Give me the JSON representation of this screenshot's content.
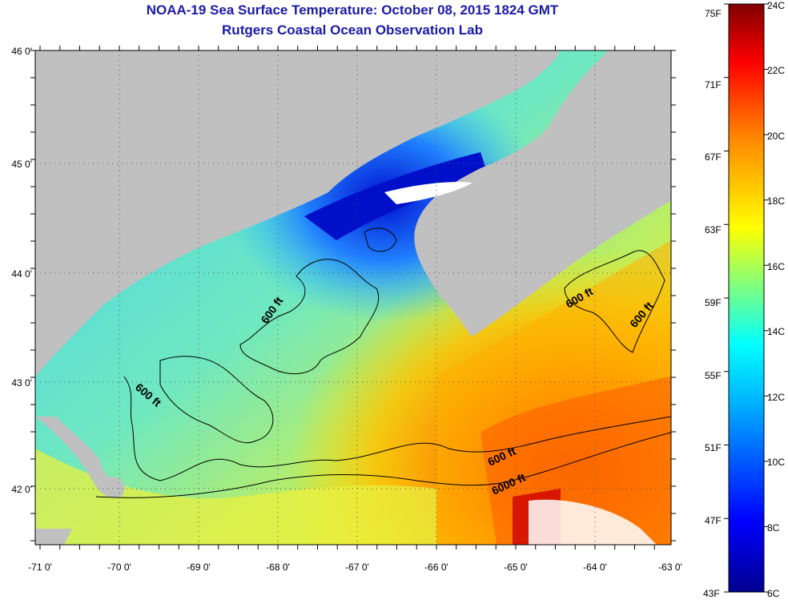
{
  "title": "NOAA-19 Sea Surface Temperature:  October 08, 2015 1824 GMT",
  "subtitle": "Rutgers Coastal Ocean Observation Lab",
  "colors": {
    "land": "#c0c0c0",
    "cloud_mask": "#ffffff",
    "contour": "#000000",
    "title": "#1a1aa8"
  },
  "longitude_ticks": [
    "-71 0'",
    "-70 0'",
    "-69 0'",
    "-68 0'",
    "-67 0'",
    "-66 0'",
    "-65 0'",
    "-64 0'",
    "-63 0'"
  ],
  "latitude_ticks": [
    "46 0'",
    "45 0'",
    "44 0'",
    "43 0'",
    "42 0'"
  ],
  "contour_labels": [
    "600 ft",
    "600 ft",
    "600 ft",
    "600 ft",
    "600 ft",
    "6000 ft"
  ],
  "colorbar": {
    "fahrenheit_labels": [
      "75F",
      "71F",
      "67F",
      "63F",
      "59F",
      "55F",
      "51F",
      "47F",
      "43F"
    ],
    "celsius_labels": [
      "24C",
      "22C",
      "20C",
      "18C",
      "16C",
      "14C",
      "12C",
      "10C",
      "8C",
      "6C"
    ],
    "range_c": [
      6,
      24
    ],
    "colormap": [
      "#00008f",
      "#0000ff",
      "#00b0ff",
      "#00ffff",
      "#80ff80",
      "#ffff00",
      "#ff8000",
      "#ff0000",
      "#800000"
    ]
  }
}
